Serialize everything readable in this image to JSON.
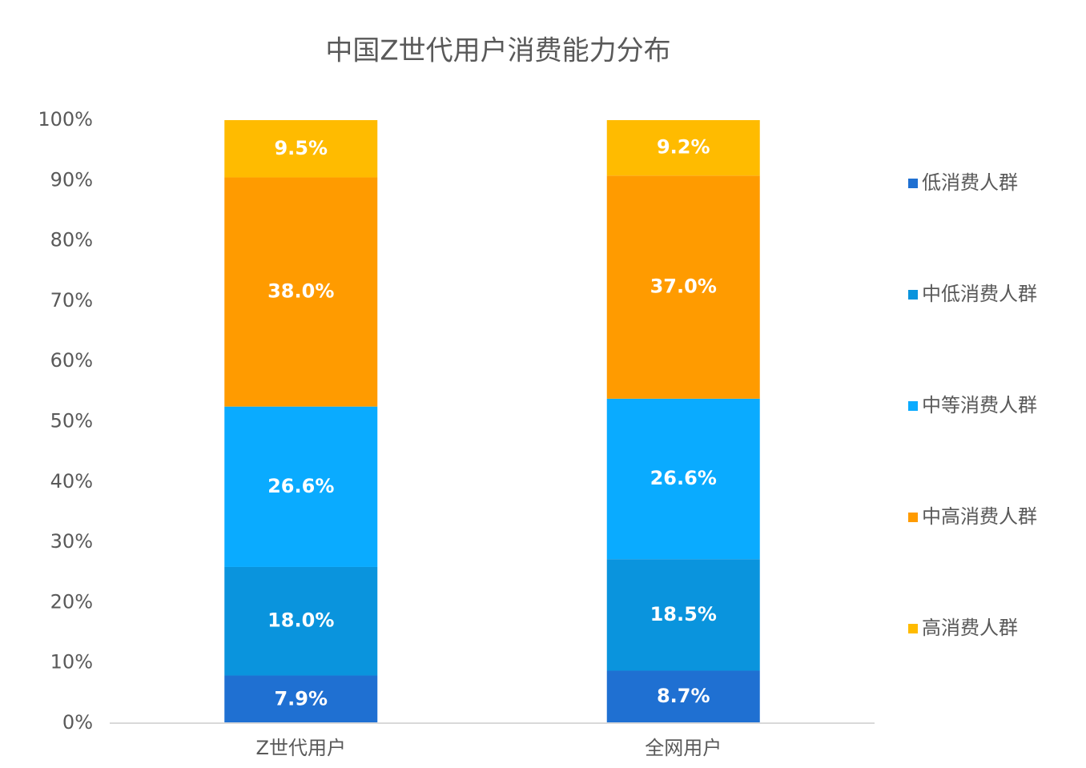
{
  "chart_data": {
    "type": "stacked-bar",
    "title": "中国Z世代用户消费能力分布",
    "categories": [
      "Z世代用户",
      "全网用户"
    ],
    "series": [
      {
        "name": "低消费人群",
        "color": "#1f70d2",
        "values": [
          7.9,
          8.7
        ],
        "value_labels": [
          "7.9%",
          "8.7%"
        ]
      },
      {
        "name": "中低消费人群",
        "color": "#0a94dd",
        "values": [
          18.0,
          18.5
        ],
        "value_labels": [
          "18.0%",
          "18.5%"
        ]
      },
      {
        "name": "中等消费人群",
        "color": "#0aabff",
        "values": [
          26.6,
          26.6
        ],
        "value_labels": [
          "26.6%",
          "26.6%"
        ]
      },
      {
        "name": "中高消费人群",
        "color": "#ff9b00",
        "values": [
          38.0,
          37.0
        ],
        "value_labels": [
          "38.0%",
          "37.0%"
        ]
      },
      {
        "name": "高消费人群",
        "color": "#ffbb00",
        "values": [
          9.5,
          9.2
        ],
        "value_labels": [
          "9.5%",
          "9.2%"
        ]
      }
    ],
    "ylim": [
      0,
      100
    ],
    "yticks": [
      {
        "value": 0,
        "label": "0%"
      },
      {
        "value": 10,
        "label": "10%"
      },
      {
        "value": 20,
        "label": "20%"
      },
      {
        "value": 30,
        "label": "30%"
      },
      {
        "value": 40,
        "label": "40%"
      },
      {
        "value": 50,
        "label": "50%"
      },
      {
        "value": 60,
        "label": "60%"
      },
      {
        "value": 70,
        "label": "70%"
      },
      {
        "value": 80,
        "label": "80%"
      },
      {
        "value": 90,
        "label": "90%"
      },
      {
        "value": 100,
        "label": "100%"
      }
    ],
    "legend": "right"
  }
}
